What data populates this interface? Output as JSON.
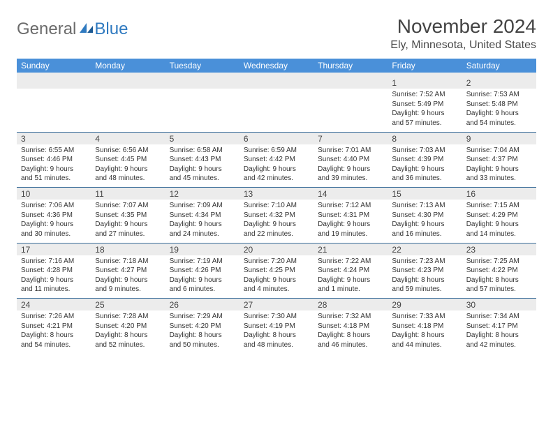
{
  "logo": {
    "word1": "General",
    "word2": "Blue"
  },
  "title": "November 2024",
  "location": "Ely, Minnesota, United States",
  "colors": {
    "header_bg": "#4a90d9",
    "header_text": "#ffffff",
    "daynum_bg": "#ececec",
    "week_divider": "#3a6d9a",
    "body_text": "#333333",
    "logo_gray": "#6b6b6b",
    "logo_blue": "#2f7ac0"
  },
  "weekdays": [
    "Sunday",
    "Monday",
    "Tuesday",
    "Wednesday",
    "Thursday",
    "Friday",
    "Saturday"
  ],
  "weeks": [
    [
      {},
      {},
      {},
      {},
      {},
      {
        "n": "1",
        "sr": "7:52 AM",
        "ss": "5:49 PM",
        "dl": "9 hours and 57 minutes."
      },
      {
        "n": "2",
        "sr": "7:53 AM",
        "ss": "5:48 PM",
        "dl": "9 hours and 54 minutes."
      }
    ],
    [
      {
        "n": "3",
        "sr": "6:55 AM",
        "ss": "4:46 PM",
        "dl": "9 hours and 51 minutes."
      },
      {
        "n": "4",
        "sr": "6:56 AM",
        "ss": "4:45 PM",
        "dl": "9 hours and 48 minutes."
      },
      {
        "n": "5",
        "sr": "6:58 AM",
        "ss": "4:43 PM",
        "dl": "9 hours and 45 minutes."
      },
      {
        "n": "6",
        "sr": "6:59 AM",
        "ss": "4:42 PM",
        "dl": "9 hours and 42 minutes."
      },
      {
        "n": "7",
        "sr": "7:01 AM",
        "ss": "4:40 PM",
        "dl": "9 hours and 39 minutes."
      },
      {
        "n": "8",
        "sr": "7:03 AM",
        "ss": "4:39 PM",
        "dl": "9 hours and 36 minutes."
      },
      {
        "n": "9",
        "sr": "7:04 AM",
        "ss": "4:37 PM",
        "dl": "9 hours and 33 minutes."
      }
    ],
    [
      {
        "n": "10",
        "sr": "7:06 AM",
        "ss": "4:36 PM",
        "dl": "9 hours and 30 minutes."
      },
      {
        "n": "11",
        "sr": "7:07 AM",
        "ss": "4:35 PM",
        "dl": "9 hours and 27 minutes."
      },
      {
        "n": "12",
        "sr": "7:09 AM",
        "ss": "4:34 PM",
        "dl": "9 hours and 24 minutes."
      },
      {
        "n": "13",
        "sr": "7:10 AM",
        "ss": "4:32 PM",
        "dl": "9 hours and 22 minutes."
      },
      {
        "n": "14",
        "sr": "7:12 AM",
        "ss": "4:31 PM",
        "dl": "9 hours and 19 minutes."
      },
      {
        "n": "15",
        "sr": "7:13 AM",
        "ss": "4:30 PM",
        "dl": "9 hours and 16 minutes."
      },
      {
        "n": "16",
        "sr": "7:15 AM",
        "ss": "4:29 PM",
        "dl": "9 hours and 14 minutes."
      }
    ],
    [
      {
        "n": "17",
        "sr": "7:16 AM",
        "ss": "4:28 PM",
        "dl": "9 hours and 11 minutes."
      },
      {
        "n": "18",
        "sr": "7:18 AM",
        "ss": "4:27 PM",
        "dl": "9 hours and 9 minutes."
      },
      {
        "n": "19",
        "sr": "7:19 AM",
        "ss": "4:26 PM",
        "dl": "9 hours and 6 minutes."
      },
      {
        "n": "20",
        "sr": "7:20 AM",
        "ss": "4:25 PM",
        "dl": "9 hours and 4 minutes."
      },
      {
        "n": "21",
        "sr": "7:22 AM",
        "ss": "4:24 PM",
        "dl": "9 hours and 1 minute."
      },
      {
        "n": "22",
        "sr": "7:23 AM",
        "ss": "4:23 PM",
        "dl": "8 hours and 59 minutes."
      },
      {
        "n": "23",
        "sr": "7:25 AM",
        "ss": "4:22 PM",
        "dl": "8 hours and 57 minutes."
      }
    ],
    [
      {
        "n": "24",
        "sr": "7:26 AM",
        "ss": "4:21 PM",
        "dl": "8 hours and 54 minutes."
      },
      {
        "n": "25",
        "sr": "7:28 AM",
        "ss": "4:20 PM",
        "dl": "8 hours and 52 minutes."
      },
      {
        "n": "26",
        "sr": "7:29 AM",
        "ss": "4:20 PM",
        "dl": "8 hours and 50 minutes."
      },
      {
        "n": "27",
        "sr": "7:30 AM",
        "ss": "4:19 PM",
        "dl": "8 hours and 48 minutes."
      },
      {
        "n": "28",
        "sr": "7:32 AM",
        "ss": "4:18 PM",
        "dl": "8 hours and 46 minutes."
      },
      {
        "n": "29",
        "sr": "7:33 AM",
        "ss": "4:18 PM",
        "dl": "8 hours and 44 minutes."
      },
      {
        "n": "30",
        "sr": "7:34 AM",
        "ss": "4:17 PM",
        "dl": "8 hours and 42 minutes."
      }
    ]
  ],
  "labels": {
    "sunrise": "Sunrise:",
    "sunset": "Sunset:",
    "daylight": "Daylight:"
  }
}
